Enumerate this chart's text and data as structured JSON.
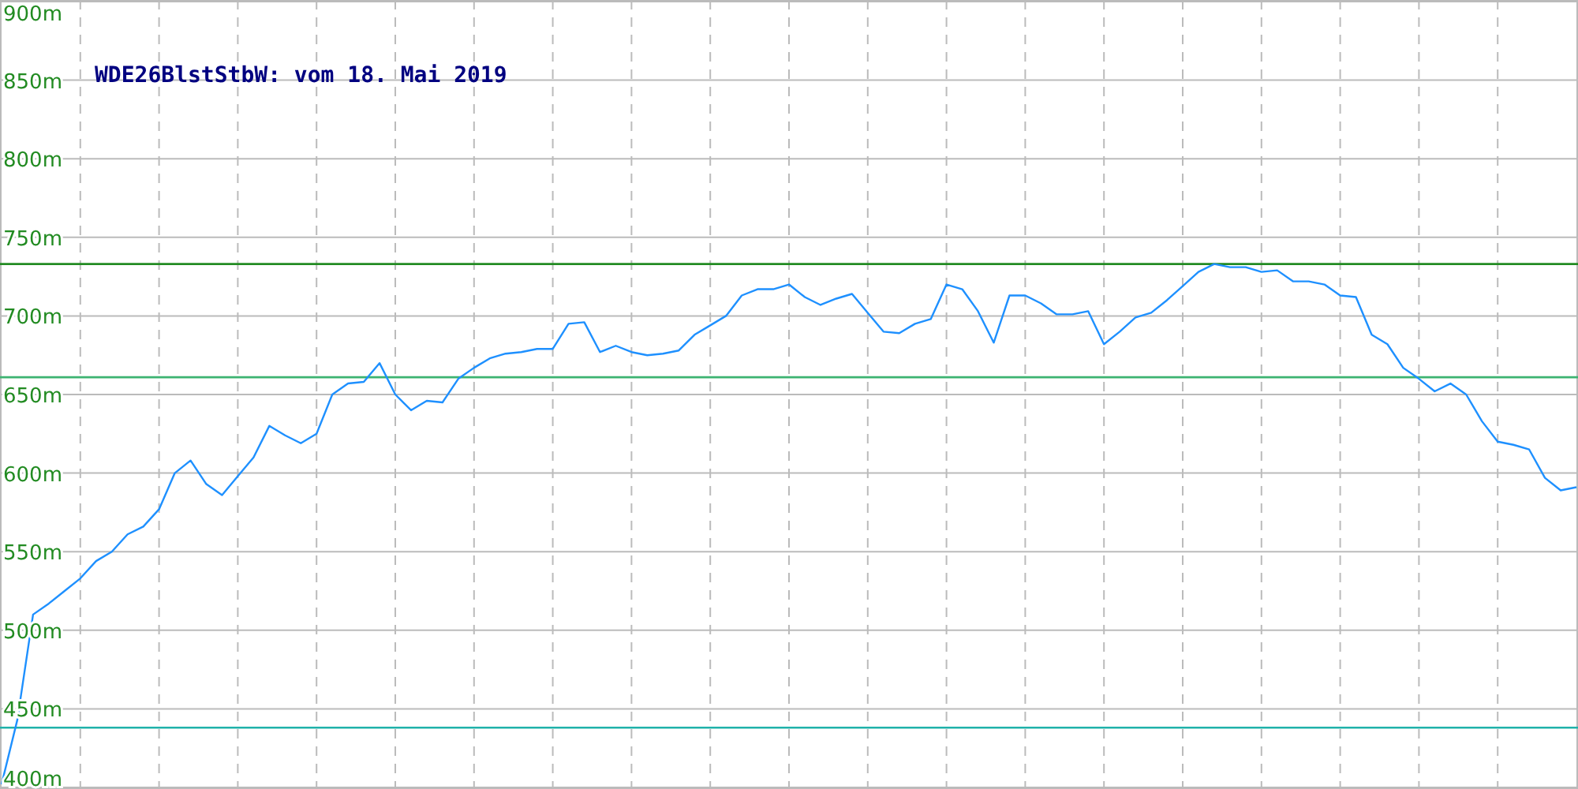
{
  "chart_data": {
    "type": "line",
    "title": "WDE26BlstStbW: vom 18. Mai 2019",
    "categories": [
      null,
      null,
      null,
      null,
      null,
      null,
      null,
      null,
      null,
      null,
      null,
      null,
      null,
      null,
      null,
      null,
      null,
      null,
      null,
      null,
      null,
      null,
      null,
      null,
      null,
      null,
      null,
      null,
      null,
      null,
      null,
      null,
      null,
      null,
      null,
      null,
      null,
      null,
      null,
      null,
      null,
      null,
      null,
      null,
      null,
      null,
      null,
      null,
      null,
      null,
      null,
      null,
      null,
      null,
      null,
      null,
      null,
      null,
      null,
      null,
      null,
      null,
      null,
      null,
      null,
      null,
      null,
      null,
      null,
      null,
      null,
      null,
      null,
      null,
      null,
      null,
      null,
      null,
      null,
      null,
      null,
      null,
      null,
      null,
      null,
      null,
      null,
      null,
      null,
      null,
      null,
      null,
      null,
      null,
      null,
      null,
      null,
      null,
      null,
      null,
      null
    ],
    "series": [
      {
        "color": "#1e90ff",
        "values": [
          402,
          443,
          510,
          517,
          525,
          533,
          544,
          550,
          561,
          566,
          577,
          600,
          608,
          593,
          586,
          598,
          610,
          630,
          624,
          619,
          625,
          650,
          657,
          658,
          670,
          650,
          640,
          646,
          645,
          660,
          667,
          673,
          676,
          677,
          679,
          679,
          695,
          696,
          677,
          681,
          677,
          675,
          676,
          678,
          688,
          694,
          700,
          713,
          717,
          717,
          720,
          712,
          707,
          711,
          714,
          702,
          690,
          689,
          695,
          698,
          720,
          717,
          703,
          683,
          713,
          713,
          708,
          701,
          701,
          703,
          682,
          690,
          699,
          702,
          710,
          719,
          728,
          733,
          731,
          731,
          728,
          729,
          722,
          722,
          720,
          713,
          712,
          688,
          682,
          667,
          660,
          652,
          657,
          650,
          633,
          620,
          618,
          615,
          597,
          589,
          591
        ]
      }
    ],
    "ylim": [
      400,
      900
    ],
    "yticks": [
      {
        "value": 400,
        "label": "400m"
      },
      {
        "value": 450,
        "label": "450m"
      },
      {
        "value": 500,
        "label": "500m"
      },
      {
        "value": 550,
        "label": "550m"
      },
      {
        "value": 600,
        "label": "600m"
      },
      {
        "value": 650,
        "label": "650m"
      },
      {
        "value": 700,
        "label": "700m"
      },
      {
        "value": 750,
        "label": "750m"
      },
      {
        "value": 800,
        "label": "800m"
      },
      {
        "value": 850,
        "label": "850m"
      },
      {
        "value": 900,
        "label": "900m"
      }
    ],
    "grid": true,
    "ref_lines": [
      {
        "axis": "y",
        "value": 733,
        "color": "#228b22"
      },
      {
        "axis": "y",
        "value": 661,
        "color": "#3cb371"
      },
      {
        "axis": "y",
        "value": 438,
        "color": "#20b2aa"
      }
    ],
    "line_style": "solid",
    "marker": "none"
  }
}
